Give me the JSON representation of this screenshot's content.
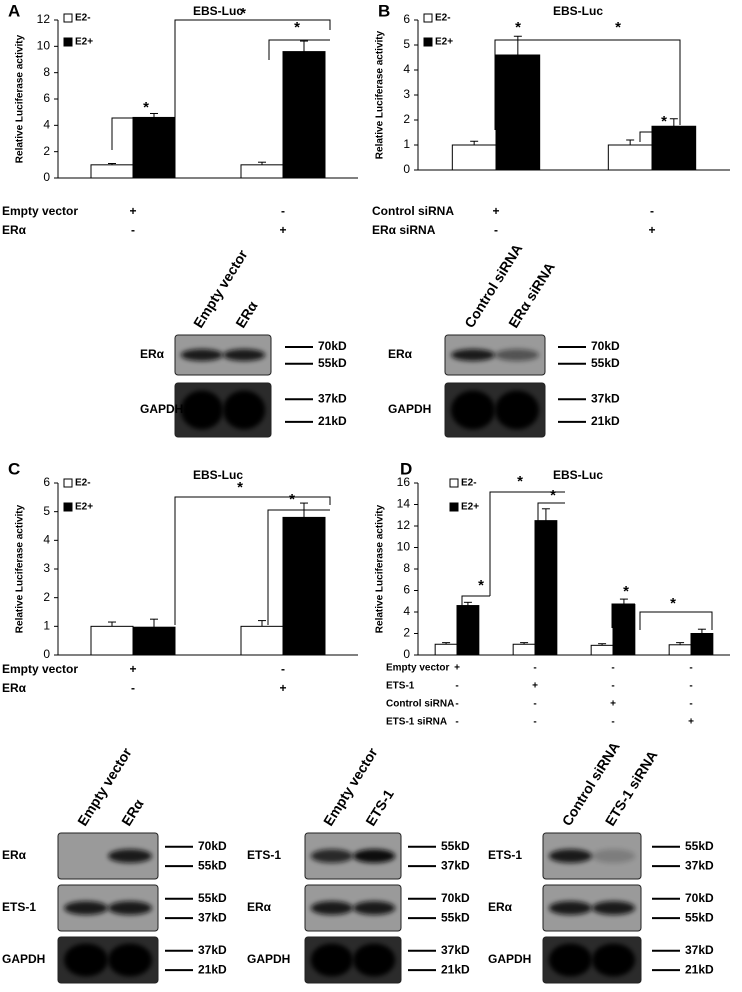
{
  "chart_data": [
    {
      "type": "bar",
      "panel_label": "A",
      "title": "EBS-Luc",
      "ylabel": "Relative Luciferase activity",
      "ylim": [
        0,
        12
      ],
      "yticks": [
        0,
        2,
        4,
        6,
        8,
        10,
        12
      ],
      "series": [
        {
          "name": "E2-",
          "color": "#ffffff",
          "values": [
            1,
            1
          ],
          "errors": [
            0.1,
            0.2
          ]
        },
        {
          "name": "E2+",
          "color": "#000000",
          "values": [
            4.6,
            9.6
          ],
          "errors": [
            0.3,
            0.8
          ]
        }
      ],
      "conditions": [
        {
          "label": "Empty vector",
          "values": [
            "+",
            "-"
          ]
        },
        {
          "label": "ERα",
          "values": [
            "-",
            "+"
          ]
        }
      ],
      "annotations": [
        "*",
        "*",
        "*"
      ]
    },
    {
      "type": "bar",
      "panel_label": "B",
      "title": "EBS-Luc",
      "ylabel": "Relative Luciferase activity",
      "ylim": [
        0,
        6
      ],
      "yticks": [
        0,
        1,
        2,
        3,
        4,
        5,
        6
      ],
      "series": [
        {
          "name": "E2-",
          "color": "#ffffff",
          "values": [
            1,
            1
          ],
          "errors": [
            0.15,
            0.2
          ]
        },
        {
          "name": "E2+",
          "color": "#000000",
          "values": [
            4.6,
            1.75
          ],
          "errors": [
            0.75,
            0.3
          ]
        }
      ],
      "conditions": [
        {
          "label": "Control siRNA",
          "values": [
            "+",
            "-"
          ]
        },
        {
          "label": "ERα  siRNA",
          "values": [
            "-",
            "+"
          ]
        }
      ],
      "annotations": [
        "*",
        "*",
        "*"
      ]
    },
    {
      "type": "bar",
      "panel_label": "C",
      "title": "EBS-Luc",
      "ylabel": "Relative Luciferase activity",
      "ylim": [
        0,
        6
      ],
      "yticks": [
        0,
        1,
        2,
        3,
        4,
        5,
        6
      ],
      "series": [
        {
          "name": "E2-",
          "color": "#ffffff",
          "values": [
            1,
            1
          ],
          "errors": [
            0.15,
            0.2
          ]
        },
        {
          "name": "E2+",
          "color": "#000000",
          "values": [
            0.97,
            4.8
          ],
          "errors": [
            0.28,
            0.5
          ]
        }
      ],
      "conditions": [
        {
          "label": "Empty vector",
          "values": [
            "+",
            "-"
          ]
        },
        {
          "label": "ERα",
          "values": [
            "-",
            "+"
          ]
        }
      ],
      "annotations": [
        "*",
        "*"
      ]
    },
    {
      "type": "bar",
      "panel_label": "D",
      "title": "EBS-Luc",
      "ylabel": "Relative Luciferase activity",
      "ylim": [
        0,
        16
      ],
      "yticks": [
        0,
        2,
        4,
        6,
        8,
        10,
        12,
        14,
        16
      ],
      "series": [
        {
          "name": "E2-",
          "color": "#ffffff",
          "values": [
            1,
            1,
            0.9,
            0.95
          ],
          "errors": [
            0.15,
            0.15,
            0.15,
            0.2
          ]
        },
        {
          "name": "E2+",
          "color": "#000000",
          "values": [
            4.6,
            12.5,
            4.7,
            2
          ],
          "errors": [
            0.3,
            1.1,
            0.5,
            0.4
          ]
        }
      ],
      "conditions": [
        {
          "label": "Empty vector",
          "values": [
            "+",
            "-",
            "-",
            "-"
          ]
        },
        {
          "label": "ETS-1",
          "values": [
            "-",
            "+",
            "-",
            "-"
          ]
        },
        {
          "label": "Control siRNA",
          "values": [
            "-",
            "-",
            "+",
            "-"
          ]
        },
        {
          "label": "ETS-1 siRNA",
          "values": [
            "-",
            "-",
            "-",
            "+"
          ]
        }
      ],
      "annotations": [
        "*",
        "*",
        "*",
        "*",
        "*"
      ]
    }
  ],
  "blots": [
    {
      "lanes": [
        "Empty vector",
        "ERα"
      ],
      "rows": [
        {
          "label": "ERα",
          "markers": [
            "70kD",
            "55kD"
          ]
        },
        {
          "label": "GAPDH",
          "markers": [
            "37kD",
            "21kD"
          ]
        }
      ]
    },
    {
      "lanes": [
        "Control siRNA",
        "ERα siRNA"
      ],
      "rows": [
        {
          "label": "ERα",
          "markers": [
            "70kD",
            "55kD"
          ]
        },
        {
          "label": "GAPDH",
          "markers": [
            "37kD",
            "21kD"
          ]
        }
      ]
    },
    {
      "lanes": [
        "Empty vector",
        "ERα"
      ],
      "rows": [
        {
          "label": "ERα",
          "markers": [
            "70kD",
            "55kD"
          ]
        },
        {
          "label": "ETS-1",
          "markers": [
            "55kD",
            "37kD"
          ]
        },
        {
          "label": "GAPDH",
          "markers": [
            "37kD",
            "21kD"
          ]
        }
      ]
    },
    {
      "lanes": [
        "Empty vector",
        "ETS-1"
      ],
      "rows": [
        {
          "label": "ETS-1",
          "markers": [
            "55kD",
            "37kD"
          ]
        },
        {
          "label": "ERα",
          "markers": [
            "70kD",
            "55kD"
          ]
        },
        {
          "label": "GAPDH",
          "markers": [
            "37kD",
            "21kD"
          ]
        }
      ]
    },
    {
      "lanes": [
        "Control siRNA",
        "ETS-1 siRNA"
      ],
      "rows": [
        {
          "label": "ETS-1",
          "markers": [
            "55kD",
            "37kD"
          ]
        },
        {
          "label": "ERα",
          "markers": [
            "70kD",
            "55kD"
          ]
        },
        {
          "label": "GAPDH",
          "markers": [
            "37kD",
            "21kD"
          ]
        }
      ]
    }
  ]
}
